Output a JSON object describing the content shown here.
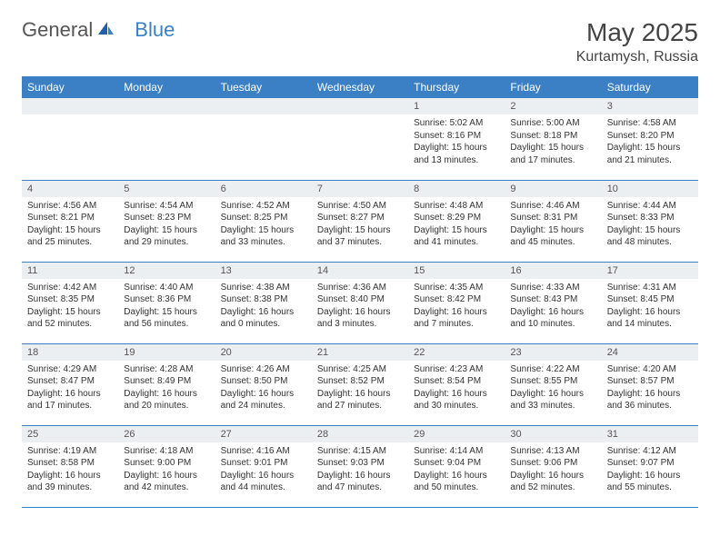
{
  "brand": {
    "part1": "General",
    "part2": "Blue"
  },
  "title": "May 2025",
  "location": "Kurtamysh, Russia",
  "colors": {
    "header_bg": "#3b7fc4",
    "header_text": "#ffffff",
    "daynum_bg": "#eceff1",
    "border": "#3b7fc4",
    "logo_gray": "#555555",
    "logo_blue": "#3b7fc4"
  },
  "weekdays": [
    "Sunday",
    "Monday",
    "Tuesday",
    "Wednesday",
    "Thursday",
    "Friday",
    "Saturday"
  ],
  "weeks": [
    [
      {
        "n": "",
        "sunrise": "",
        "sunset": "",
        "daylight": ""
      },
      {
        "n": "",
        "sunrise": "",
        "sunset": "",
        "daylight": ""
      },
      {
        "n": "",
        "sunrise": "",
        "sunset": "",
        "daylight": ""
      },
      {
        "n": "",
        "sunrise": "",
        "sunset": "",
        "daylight": ""
      },
      {
        "n": "1",
        "sunrise": "Sunrise: 5:02 AM",
        "sunset": "Sunset: 8:16 PM",
        "daylight": "Daylight: 15 hours and 13 minutes."
      },
      {
        "n": "2",
        "sunrise": "Sunrise: 5:00 AM",
        "sunset": "Sunset: 8:18 PM",
        "daylight": "Daylight: 15 hours and 17 minutes."
      },
      {
        "n": "3",
        "sunrise": "Sunrise: 4:58 AM",
        "sunset": "Sunset: 8:20 PM",
        "daylight": "Daylight: 15 hours and 21 minutes."
      }
    ],
    [
      {
        "n": "4",
        "sunrise": "Sunrise: 4:56 AM",
        "sunset": "Sunset: 8:21 PM",
        "daylight": "Daylight: 15 hours and 25 minutes."
      },
      {
        "n": "5",
        "sunrise": "Sunrise: 4:54 AM",
        "sunset": "Sunset: 8:23 PM",
        "daylight": "Daylight: 15 hours and 29 minutes."
      },
      {
        "n": "6",
        "sunrise": "Sunrise: 4:52 AM",
        "sunset": "Sunset: 8:25 PM",
        "daylight": "Daylight: 15 hours and 33 minutes."
      },
      {
        "n": "7",
        "sunrise": "Sunrise: 4:50 AM",
        "sunset": "Sunset: 8:27 PM",
        "daylight": "Daylight: 15 hours and 37 minutes."
      },
      {
        "n": "8",
        "sunrise": "Sunrise: 4:48 AM",
        "sunset": "Sunset: 8:29 PM",
        "daylight": "Daylight: 15 hours and 41 minutes."
      },
      {
        "n": "9",
        "sunrise": "Sunrise: 4:46 AM",
        "sunset": "Sunset: 8:31 PM",
        "daylight": "Daylight: 15 hours and 45 minutes."
      },
      {
        "n": "10",
        "sunrise": "Sunrise: 4:44 AM",
        "sunset": "Sunset: 8:33 PM",
        "daylight": "Daylight: 15 hours and 48 minutes."
      }
    ],
    [
      {
        "n": "11",
        "sunrise": "Sunrise: 4:42 AM",
        "sunset": "Sunset: 8:35 PM",
        "daylight": "Daylight: 15 hours and 52 minutes."
      },
      {
        "n": "12",
        "sunrise": "Sunrise: 4:40 AM",
        "sunset": "Sunset: 8:36 PM",
        "daylight": "Daylight: 15 hours and 56 minutes."
      },
      {
        "n": "13",
        "sunrise": "Sunrise: 4:38 AM",
        "sunset": "Sunset: 8:38 PM",
        "daylight": "Daylight: 16 hours and 0 minutes."
      },
      {
        "n": "14",
        "sunrise": "Sunrise: 4:36 AM",
        "sunset": "Sunset: 8:40 PM",
        "daylight": "Daylight: 16 hours and 3 minutes."
      },
      {
        "n": "15",
        "sunrise": "Sunrise: 4:35 AM",
        "sunset": "Sunset: 8:42 PM",
        "daylight": "Daylight: 16 hours and 7 minutes."
      },
      {
        "n": "16",
        "sunrise": "Sunrise: 4:33 AM",
        "sunset": "Sunset: 8:43 PM",
        "daylight": "Daylight: 16 hours and 10 minutes."
      },
      {
        "n": "17",
        "sunrise": "Sunrise: 4:31 AM",
        "sunset": "Sunset: 8:45 PM",
        "daylight": "Daylight: 16 hours and 14 minutes."
      }
    ],
    [
      {
        "n": "18",
        "sunrise": "Sunrise: 4:29 AM",
        "sunset": "Sunset: 8:47 PM",
        "daylight": "Daylight: 16 hours and 17 minutes."
      },
      {
        "n": "19",
        "sunrise": "Sunrise: 4:28 AM",
        "sunset": "Sunset: 8:49 PM",
        "daylight": "Daylight: 16 hours and 20 minutes."
      },
      {
        "n": "20",
        "sunrise": "Sunrise: 4:26 AM",
        "sunset": "Sunset: 8:50 PM",
        "daylight": "Daylight: 16 hours and 24 minutes."
      },
      {
        "n": "21",
        "sunrise": "Sunrise: 4:25 AM",
        "sunset": "Sunset: 8:52 PM",
        "daylight": "Daylight: 16 hours and 27 minutes."
      },
      {
        "n": "22",
        "sunrise": "Sunrise: 4:23 AM",
        "sunset": "Sunset: 8:54 PM",
        "daylight": "Daylight: 16 hours and 30 minutes."
      },
      {
        "n": "23",
        "sunrise": "Sunrise: 4:22 AM",
        "sunset": "Sunset: 8:55 PM",
        "daylight": "Daylight: 16 hours and 33 minutes."
      },
      {
        "n": "24",
        "sunrise": "Sunrise: 4:20 AM",
        "sunset": "Sunset: 8:57 PM",
        "daylight": "Daylight: 16 hours and 36 minutes."
      }
    ],
    [
      {
        "n": "25",
        "sunrise": "Sunrise: 4:19 AM",
        "sunset": "Sunset: 8:58 PM",
        "daylight": "Daylight: 16 hours and 39 minutes."
      },
      {
        "n": "26",
        "sunrise": "Sunrise: 4:18 AM",
        "sunset": "Sunset: 9:00 PM",
        "daylight": "Daylight: 16 hours and 42 minutes."
      },
      {
        "n": "27",
        "sunrise": "Sunrise: 4:16 AM",
        "sunset": "Sunset: 9:01 PM",
        "daylight": "Daylight: 16 hours and 44 minutes."
      },
      {
        "n": "28",
        "sunrise": "Sunrise: 4:15 AM",
        "sunset": "Sunset: 9:03 PM",
        "daylight": "Daylight: 16 hours and 47 minutes."
      },
      {
        "n": "29",
        "sunrise": "Sunrise: 4:14 AM",
        "sunset": "Sunset: 9:04 PM",
        "daylight": "Daylight: 16 hours and 50 minutes."
      },
      {
        "n": "30",
        "sunrise": "Sunrise: 4:13 AM",
        "sunset": "Sunset: 9:06 PM",
        "daylight": "Daylight: 16 hours and 52 minutes."
      },
      {
        "n": "31",
        "sunrise": "Sunrise: 4:12 AM",
        "sunset": "Sunset: 9:07 PM",
        "daylight": "Daylight: 16 hours and 55 minutes."
      }
    ]
  ]
}
